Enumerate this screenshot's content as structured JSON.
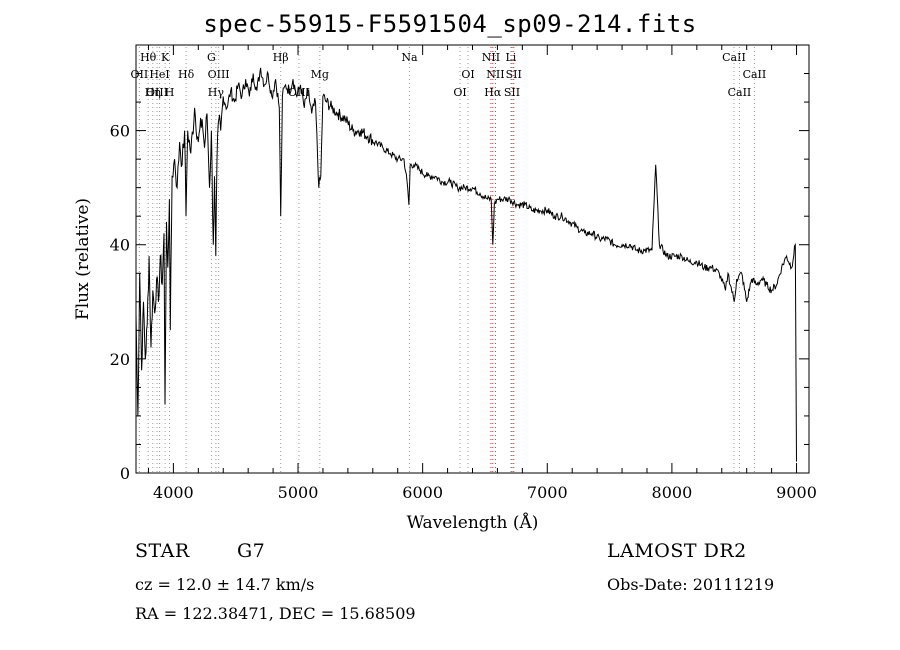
{
  "window": {
    "title": "spec-55915-F5591504_sp09-214.fits"
  },
  "footer": {
    "class_label": "STAR",
    "subclass_label": "G7",
    "redshift_text": "cz = 12.0 ± 14.7 km/s",
    "coords_text": "RA = 122.38471, DEC =  15.68509",
    "survey_label": "LAMOST DR2",
    "obs_date_text": "Obs-Date: 20111219"
  },
  "chart_data": {
    "type": "line",
    "title": "spec-55915-F5591504_sp09-214.fits",
    "xlabel": "Wavelength (Å)",
    "ylabel": "Flux (relative)",
    "xlim": [
      3700,
      9100
    ],
    "ylim": [
      0,
      75
    ],
    "xticks": [
      4000,
      5000,
      6000,
      7000,
      8000,
      9000
    ],
    "yticks": [
      0,
      20,
      40,
      60
    ],
    "grid": false,
    "series": [
      {
        "line_color": "#000000",
        "x": [
          3700,
          3715,
          3730,
          3745,
          3760,
          3775,
          3790,
          3805,
          3820,
          3835,
          3850,
          3865,
          3880,
          3895,
          3910,
          3925,
          3933,
          3945,
          3955,
          3968,
          3975,
          3990,
          4010,
          4030,
          4050,
          4070,
          4090,
          4101,
          4115,
          4140,
          4170,
          4200,
          4230,
          4250,
          4270,
          4290,
          4305,
          4320,
          4330,
          4340,
          4350,
          4365,
          4380,
          4400,
          4430,
          4460,
          4490,
          4520,
          4550,
          4580,
          4610,
          4640,
          4670,
          4700,
          4730,
          4760,
          4790,
          4820,
          4850,
          4861,
          4875,
          4900,
          4930,
          4960,
          4990,
          5020,
          5050,
          5080,
          5110,
          5140,
          5167,
          5183,
          5200,
          5230,
          5270,
          5320,
          5380,
          5440,
          5500,
          5560,
          5620,
          5680,
          5740,
          5800,
          5850,
          5875,
          5890,
          5900,
          5930,
          5980,
          6040,
          6100,
          6160,
          6220,
          6280,
          6340,
          6400,
          6460,
          6520,
          6550,
          6563,
          6575,
          6600,
          6650,
          6700,
          6760,
          6820,
          6880,
          6940,
          7000,
          7060,
          7120,
          7180,
          7240,
          7300,
          7360,
          7420,
          7480,
          7540,
          7600,
          7660,
          7720,
          7780,
          7840,
          7870,
          7900,
          7960,
          8020,
          8080,
          8140,
          8200,
          8260,
          8320,
          8380,
          8430,
          8450,
          8500,
          8520,
          8560,
          8600,
          8640,
          8680,
          8720,
          8760,
          8800,
          8840,
          8880,
          8920,
          8960,
          8990,
          9000
        ],
        "y": [
          28,
          10,
          35,
          18,
          30,
          20,
          26,
          38,
          22,
          32,
          28,
          34,
          30,
          38,
          33,
          42,
          12,
          44,
          36,
          48,
          25,
          52,
          55,
          50,
          58,
          54,
          60,
          45,
          60,
          56,
          64,
          58,
          62,
          57,
          63,
          50,
          60,
          40,
          52,
          38,
          55,
          62,
          60,
          66,
          64,
          67,
          65,
          68,
          66,
          69,
          66,
          70,
          67,
          71,
          68,
          70,
          66,
          69,
          64,
          45,
          66,
          68,
          67,
          69,
          66,
          68,
          64,
          67,
          63,
          65,
          50,
          52,
          66,
          65,
          64,
          63,
          62,
          60,
          60,
          59,
          58,
          57,
          56,
          55,
          55,
          51,
          47,
          54,
          54,
          53,
          52,
          52,
          51,
          51,
          50,
          50,
          50,
          49,
          48,
          48,
          40,
          47,
          48,
          48,
          48,
          47,
          47,
          46,
          46,
          46,
          45,
          45,
          44,
          43,
          42,
          42,
          41,
          41,
          40,
          40,
          40,
          39,
          39,
          39,
          54,
          40,
          38,
          38,
          38,
          37,
          37,
          36,
          36,
          35,
          32,
          35,
          30,
          34,
          35,
          30,
          34,
          33,
          34,
          33,
          32,
          33,
          36,
          38,
          36,
          40,
          2
        ],
        "values": [
          28,
          10,
          35,
          18,
          30,
          20,
          26,
          38,
          22,
          32,
          28,
          34,
          30,
          38,
          33,
          42,
          12,
          44,
          36,
          48,
          25,
          52,
          55,
          50,
          58,
          54,
          60,
          45,
          60,
          56,
          64,
          58,
          62,
          57,
          63,
          50,
          60,
          40,
          52,
          38,
          55,
          62,
          60,
          66,
          64,
          67,
          65,
          68,
          66,
          69,
          66,
          70,
          67,
          71,
          68,
          70,
          66,
          69,
          64,
          45,
          66,
          68,
          67,
          69,
          66,
          68,
          64,
          67,
          63,
          65,
          50,
          52,
          66,
          65,
          64,
          63,
          62,
          60,
          60,
          59,
          58,
          57,
          56,
          55,
          55,
          51,
          47,
          54,
          54,
          53,
          52,
          52,
          51,
          51,
          50,
          50,
          50,
          49,
          48,
          48,
          40,
          47,
          48,
          48,
          48,
          47,
          47,
          46,
          46,
          46,
          45,
          45,
          44,
          43,
          42,
          42,
          41,
          41,
          40,
          40,
          40,
          39,
          39,
          39,
          54,
          40,
          38,
          38,
          38,
          37,
          37,
          36,
          36,
          35,
          32,
          35,
          30,
          34,
          35,
          30,
          34,
          33,
          34,
          33,
          32,
          33,
          36,
          38,
          36,
          40,
          2
        ]
      }
    ],
    "line_marker_style": "dotted",
    "line_markers": [
      {
        "label": "Hθ",
        "x": 3798,
        "row": 0,
        "color": "#999999"
      },
      {
        "label": "K",
        "x": 3934,
        "row": 0,
        "color": "#999999"
      },
      {
        "label": "OII",
        "x": 3727,
        "row": 1,
        "color": "#999999"
      },
      {
        "label": "HeI",
        "x": 3889,
        "row": 1,
        "color": "#999999"
      },
      {
        "label": "Hδ",
        "x": 4102,
        "row": 1,
        "color": "#999999"
      },
      {
        "label": "OIII",
        "x": 3869,
        "row": 2,
        "color": "#999999"
      },
      {
        "label": "Hη",
        "x": 3835,
        "row": 2,
        "color": "#999999"
      },
      {
        "label": "H",
        "x": 3969,
        "row": 2,
        "color": "#999999"
      },
      {
        "label": "G",
        "x": 4305,
        "row": 0,
        "color": "#999999"
      },
      {
        "label": "OIII",
        "x": 4363,
        "row": 1,
        "color": "#999999"
      },
      {
        "label": "Hγ",
        "x": 4341,
        "row": 2,
        "color": "#999999"
      },
      {
        "label": "Hβ",
        "x": 4861,
        "row": 0,
        "color": "#999999"
      },
      {
        "label": "Mg",
        "x": 5175,
        "row": 1,
        "color": "#999999"
      },
      {
        "label": "OIII",
        "x": 5007,
        "row": 2,
        "color": "#999999"
      },
      {
        "label": "Na",
        "x": 5894,
        "row": 0,
        "color": "#999999"
      },
      {
        "label": "OI",
        "x": 6364,
        "row": 1,
        "color": "#999999"
      },
      {
        "label": "OI",
        "x": 6300,
        "row": 2,
        "color": "#999999"
      },
      {
        "label": "NII",
        "x": 6548,
        "row": 0,
        "color": "#cc3333"
      },
      {
        "label": "Li",
        "x": 6708,
        "row": 0,
        "color": "#999999"
      },
      {
        "label": "NII",
        "x": 6584,
        "row": 1,
        "color": "#cc3333"
      },
      {
        "label": "SII",
        "x": 6731,
        "row": 1,
        "color": "#cc3333"
      },
      {
        "label": "Hα",
        "x": 6563,
        "row": 2,
        "color": "#cc3333"
      },
      {
        "label": "SII",
        "x": 6717,
        "row": 2,
        "color": "#cc3333"
      },
      {
        "label": "CaII",
        "x": 8498,
        "row": 0,
        "color": "#999999"
      },
      {
        "label": "CaII",
        "x": 8662,
        "row": 1,
        "color": "#999999"
      },
      {
        "label": "CaII",
        "x": 8542,
        "row": 2,
        "color": "#999999"
      }
    ]
  }
}
